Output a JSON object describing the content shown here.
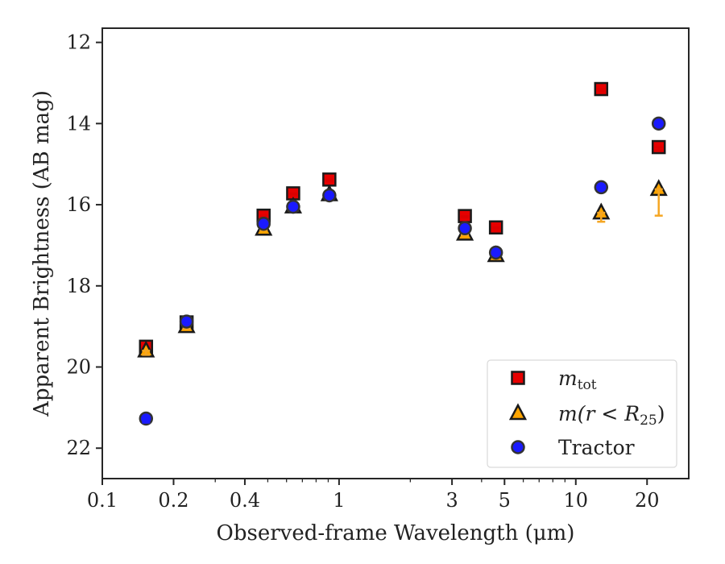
{
  "chart_data": {
    "type": "scatter",
    "title": "",
    "xlabel": "Observed-frame Wavelength (μm)",
    "ylabel": "Apparent Brightness (AB mag)",
    "xscale": "log",
    "xlim": [
      0.1,
      30
    ],
    "ylim": [
      22.75,
      11.65
    ],
    "y_inverted": true,
    "grid": false,
    "legend_position": "lower-right",
    "x_ticks": [
      {
        "value": 0.1,
        "label": "0.1"
      },
      {
        "value": 0.2,
        "label": "0.2"
      },
      {
        "value": 0.4,
        "label": "0.4"
      },
      {
        "value": 1,
        "label": "1"
      },
      {
        "value": 3,
        "label": "3"
      },
      {
        "value": 5,
        "label": "5"
      },
      {
        "value": 10,
        "label": "10"
      },
      {
        "value": 20,
        "label": "20"
      }
    ],
    "y_ticks": [
      {
        "value": 12,
        "label": "12"
      },
      {
        "value": 14,
        "label": "14"
      },
      {
        "value": 16,
        "label": "16"
      },
      {
        "value": 18,
        "label": "18"
      },
      {
        "value": 20,
        "label": "20"
      },
      {
        "value": 22,
        "label": "22"
      }
    ],
    "series": [
      {
        "name": "m_tot",
        "label_main": "m",
        "label_sub": "tot",
        "marker": "square",
        "fill": "#e60000",
        "edge": "#1a1a1a",
        "errcolor": "#dd0000",
        "points": [
          {
            "x": 0.153,
            "y": 19.5,
            "err": 0.12
          },
          {
            "x": 0.227,
            "y": 18.9,
            "err": 0.05
          },
          {
            "x": 0.48,
            "y": 16.27,
            "err": 0.03
          },
          {
            "x": 0.64,
            "y": 15.72,
            "err": 0.03
          },
          {
            "x": 0.91,
            "y": 15.38,
            "err": 0.03
          },
          {
            "x": 3.4,
            "y": 16.28,
            "err": 0.03
          },
          {
            "x": 4.6,
            "y": 16.56,
            "err": 0.03
          },
          {
            "x": 12.8,
            "y": 13.15,
            "err": 0.05
          },
          {
            "x": 22.4,
            "y": 14.58,
            "err": 0.08
          }
        ]
      },
      {
        "name": "m(r < R25)",
        "label_pre": "m(r < R",
        "label_sub": "25",
        "label_post": ")",
        "marker": "triangle",
        "fill": "#ffa500",
        "edge": "#1a1a1a",
        "errcolor": "#f5a623",
        "points": [
          {
            "x": 0.153,
            "y": 19.6,
            "err": 0.1
          },
          {
            "x": 0.227,
            "y": 19.0,
            "err": 0.05
          },
          {
            "x": 0.48,
            "y": 16.6,
            "err": 0.03
          },
          {
            "x": 0.64,
            "y": 16.05,
            "err": 0.03
          },
          {
            "x": 0.91,
            "y": 15.75,
            "err": 0.03
          },
          {
            "x": 3.4,
            "y": 16.72,
            "err": 0.03
          },
          {
            "x": 4.6,
            "y": 17.25,
            "err": 0.03
          },
          {
            "x": 12.8,
            "y": 16.2,
            "err": 0.22
          },
          {
            "x": 22.4,
            "y": 15.62,
            "err": 0.65
          }
        ]
      },
      {
        "name": "Tractor",
        "marker": "circle",
        "fill": "#1a1aff",
        "edge": "#333333",
        "errcolor": "#1a1aff",
        "points": [
          {
            "x": 0.153,
            "y": 21.27,
            "err": 0.1
          },
          {
            "x": 0.227,
            "y": 18.88,
            "err": 0.05
          },
          {
            "x": 0.48,
            "y": 16.47,
            "err": 0.03
          },
          {
            "x": 0.64,
            "y": 16.05,
            "err": 0.03
          },
          {
            "x": 0.91,
            "y": 15.77,
            "err": 0.03
          },
          {
            "x": 3.4,
            "y": 16.58,
            "err": 0.03
          },
          {
            "x": 4.6,
            "y": 17.18,
            "err": 0.03
          },
          {
            "x": 12.8,
            "y": 15.57,
            "err": 0.05
          },
          {
            "x": 22.4,
            "y": 14.0,
            "err": 0.06
          }
        ]
      }
    ]
  }
}
